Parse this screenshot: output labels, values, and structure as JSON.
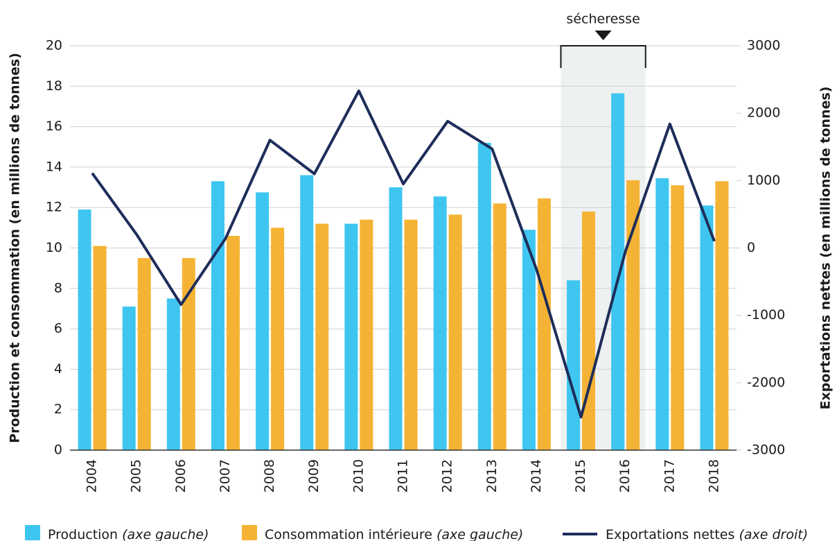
{
  "chart_data": {
    "type": "bar_line",
    "categories": [
      "2004",
      "2005",
      "2006",
      "2007",
      "2008",
      "2009",
      "2010",
      "2011",
      "2012",
      "2013",
      "2014",
      "2015",
      "2016",
      "2017",
      "2018"
    ],
    "series": [
      {
        "name": "Production",
        "legend_note": "(axe gauche)",
        "color": "#3ec6f0",
        "type": "bar",
        "values": [
          11.9,
          7.1,
          7.5,
          13.3,
          12.75,
          13.6,
          11.2,
          13.0,
          12.55,
          15.2,
          10.9,
          8.4,
          17.65,
          13.45,
          12.1
        ]
      },
      {
        "name": "Consommation intérieure",
        "legend_note": "(axe gauche)",
        "color": "#f5b335",
        "type": "bar",
        "values": [
          10.1,
          9.5,
          9.5,
          10.6,
          11.0,
          11.2,
          11.4,
          11.4,
          11.65,
          12.2,
          12.45,
          11.8,
          13.35,
          13.1,
          13.3
        ]
      },
      {
        "name": "Exportations nettes",
        "legend_note": "(axe droit)",
        "color": "#1e2d5a",
        "type": "line",
        "axis": "y2",
        "values": [
          1110,
          200,
          -840,
          140,
          1600,
          1100,
          2330,
          950,
          1880,
          1470,
          -320,
          -2510,
          -50,
          1840,
          100
        ]
      }
    ],
    "ylabel": "Production et consommation (en millions de tonnes)",
    "y2label": "Exportations nettes (en millions de tonnes)",
    "ylim": [
      0,
      20
    ],
    "yticks": [
      0,
      2,
      4,
      6,
      8,
      10,
      12,
      14,
      16,
      18,
      20
    ],
    "y2lim": [
      -3000,
      3000
    ],
    "y2ticks": [
      -3000,
      -2000,
      -1000,
      0,
      1000,
      2000,
      3000
    ],
    "grid": true,
    "annotation": {
      "text": "sécheresse",
      "from": "2015",
      "to": "2016"
    }
  }
}
